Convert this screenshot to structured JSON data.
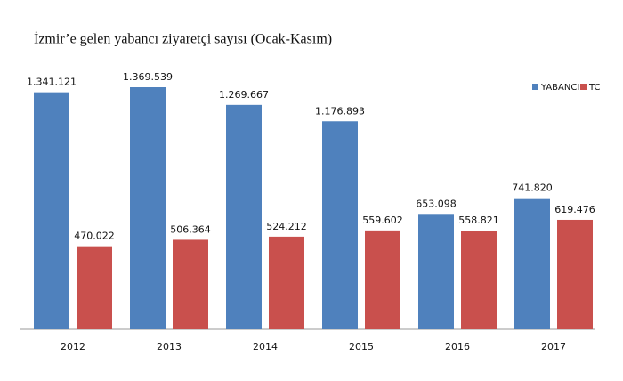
{
  "chart_data": {
    "type": "bar",
    "title": "İzmir’e gelen yabancı ziyaretçi sayısı (Ocak-Kasım)",
    "categories": [
      "2012",
      "2013",
      "2014",
      "2015",
      "2016",
      "2017"
    ],
    "series": [
      {
        "name": "YABANCI",
        "color": "#4f81bd",
        "values": [
          1341121,
          1369539,
          1269667,
          1176893,
          653098,
          741820
        ],
        "value_labels": [
          "1.341.121",
          "1.369.539",
          "1.269.667",
          "1.176.893",
          "653.098",
          "741.820"
        ]
      },
      {
        "name": "TC",
        "color": "#c9504d",
        "values": [
          470022,
          506364,
          524212,
          559602,
          558821,
          619476
        ],
        "value_labels": [
          "470.022",
          "506.364",
          "524.212",
          "559.602",
          "558.821",
          "619.476"
        ]
      }
    ],
    "legend": "top-right"
  }
}
